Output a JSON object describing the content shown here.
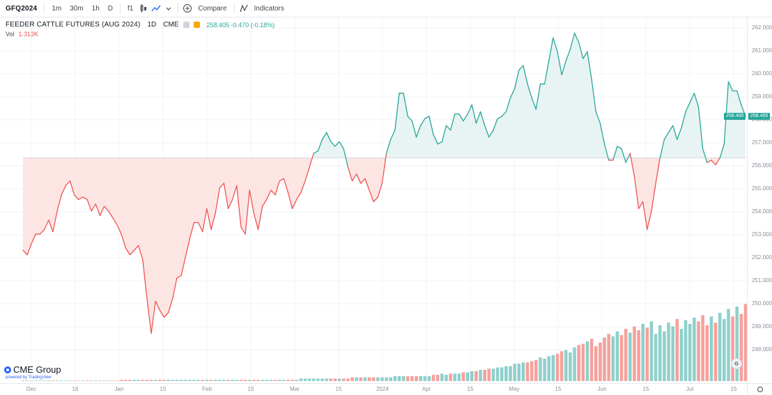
{
  "toolbar": {
    "symbol": "GFQ2024",
    "intervals": [
      "1m",
      "30m",
      "1h",
      "D"
    ],
    "chart_type_label": "f1",
    "compare_label": "Compare",
    "indicators_label": "Indicators"
  },
  "legend": {
    "title": "FEEDER CATTLE FUTURES (AUG 2024)",
    "timeframe": "1D",
    "exchange": "CME",
    "values_text": "258.405 -0.470 (-0.18%)",
    "volume_label": "Vol",
    "volume_value": "1.313K",
    "pill_colors": [
      "#d1d4dc",
      "#f7a600"
    ]
  },
  "price_axis": {
    "labels": [
      "262.000",
      "261.000",
      "260.000",
      "259.000",
      "258.000",
      "257.000",
      "256.000",
      "255.000",
      "254.000",
      "253.000",
      "252.000",
      "251.000",
      "250.000",
      "249.000",
      "248.000"
    ],
    "last_price_badges": [
      "258.400",
      "258.405"
    ]
  },
  "time_axis": {
    "labels": [
      "Dec",
      "16",
      "Jan",
      "15",
      "Feb",
      "15",
      "Mar",
      "15",
      "2024",
      "Apr",
      "15",
      "May",
      "15",
      "Jun",
      "15",
      "Jul",
      "15"
    ]
  },
  "branding": {
    "logo_text": "CME Group",
    "sub_text": "powered by TradingView"
  },
  "colors": {
    "up": "#26a69a",
    "down": "#ef5350",
    "up_fill": "#e7f4f3",
    "down_fill": "#fde5e4",
    "vol_up": "#8fd0cb",
    "vol_down": "#f6a19c",
    "grid": "#f0f3fa"
  },
  "chart_data": {
    "type": "area",
    "title": "FEEDER CATTLE FUTURES (AUG 2024)",
    "baseline": 256.6,
    "ylim": [
      247.6,
      262.2
    ],
    "series": [
      {
        "name": "price",
        "values": [
          252.6,
          252.4,
          252.9,
          253.3,
          253.3,
          253.5,
          253.9,
          253.4,
          254.3,
          255.0,
          255.4,
          255.6,
          255.0,
          254.8,
          254.9,
          254.8,
          254.3,
          254.6,
          254.1,
          254.5,
          254.3,
          254.0,
          253.7,
          253.3,
          252.7,
          252.4,
          252.6,
          252.8,
          252.2,
          250.5,
          249.0,
          250.4,
          250.0,
          249.7,
          249.9,
          250.5,
          251.4,
          251.5,
          252.3,
          253.1,
          253.8,
          253.8,
          253.4,
          254.4,
          253.5,
          254.2,
          255.3,
          255.5,
          254.4,
          254.8,
          255.4,
          253.6,
          253.3,
          255.2,
          254.2,
          253.5,
          254.5,
          254.8,
          255.2,
          255.0,
          255.6,
          255.7,
          255.1,
          254.4,
          254.8,
          255.1,
          255.6,
          256.2,
          256.8,
          256.9,
          257.4,
          257.7,
          257.3,
          257.1,
          257.3,
          257.0,
          256.2,
          255.6,
          255.9,
          255.5,
          255.7,
          255.2,
          254.7,
          254.9,
          255.5,
          256.8,
          257.4,
          257.8,
          259.4,
          259.4,
          258.4,
          258.2,
          257.5,
          258.0,
          258.3,
          258.4,
          257.6,
          257.2,
          257.3,
          258.0,
          257.8,
          258.5,
          258.5,
          258.2,
          258.5,
          258.9,
          258.1,
          258.6,
          258.0,
          257.5,
          257.8,
          258.3,
          258.4,
          258.6,
          259.2,
          259.6,
          260.4,
          260.6,
          259.8,
          259.2,
          258.7,
          259.8,
          259.8,
          260.8,
          261.8,
          261.2,
          260.2,
          260.8,
          261.3,
          262.0,
          261.6,
          260.9,
          261.2,
          260.0,
          258.6,
          258.1,
          257.2,
          256.5,
          256.5,
          257.1,
          257.0,
          256.4,
          256.8,
          255.8,
          254.4,
          254.7,
          253.5,
          254.3,
          255.5,
          256.6,
          257.4,
          257.7,
          258.0,
          257.4,
          257.9,
          258.6,
          259.0,
          259.4,
          258.8,
          257.0,
          256.4,
          256.5,
          256.3,
          256.6,
          257.2,
          259.9,
          259.5,
          259.5,
          258.9,
          258.4
        ]
      },
      {
        "name": "volume",
        "values": [
          0,
          0,
          0,
          0,
          0,
          0,
          0,
          0,
          0,
          0,
          0,
          0,
          0,
          0,
          0,
          0,
          0,
          0,
          0,
          0,
          0,
          0,
          0,
          1,
          1,
          1,
          1,
          1,
          1,
          1,
          1,
          1,
          1,
          1,
          1,
          1,
          1,
          1,
          1,
          1,
          1,
          1,
          1,
          1,
          1,
          1,
          1,
          1,
          1,
          1,
          1,
          1,
          1,
          1,
          1,
          1,
          1,
          1,
          1,
          1,
          1,
          1,
          1,
          1,
          1,
          2,
          2,
          2,
          2,
          2,
          2,
          2,
          2,
          2,
          2,
          2,
          2,
          3,
          3,
          3,
          3,
          3,
          3,
          3,
          3,
          3,
          3,
          4,
          4,
          4,
          4,
          4,
          4,
          4,
          4,
          4,
          5,
          5,
          6,
          5,
          6,
          6,
          6,
          7,
          7,
          8,
          8,
          9,
          9,
          10,
          10,
          11,
          11,
          12,
          12,
          14,
          14,
          15,
          15,
          16,
          17,
          19,
          18,
          20,
          21,
          22,
          24,
          25,
          23,
          27,
          29,
          30,
          32,
          34,
          28,
          31,
          35,
          38,
          36,
          40,
          37,
          42,
          39,
          44,
          41,
          46,
          43,
          48,
          38,
          45,
          40,
          47,
          44,
          50,
          42,
          49,
          46,
          51,
          48,
          53,
          45,
          52,
          47,
          55,
          50,
          58,
          52,
          60,
          54,
          62,
          56,
          64,
          58,
          66,
          60,
          68,
          56,
          70,
          62,
          72,
          59,
          74
        ]
      }
    ]
  }
}
